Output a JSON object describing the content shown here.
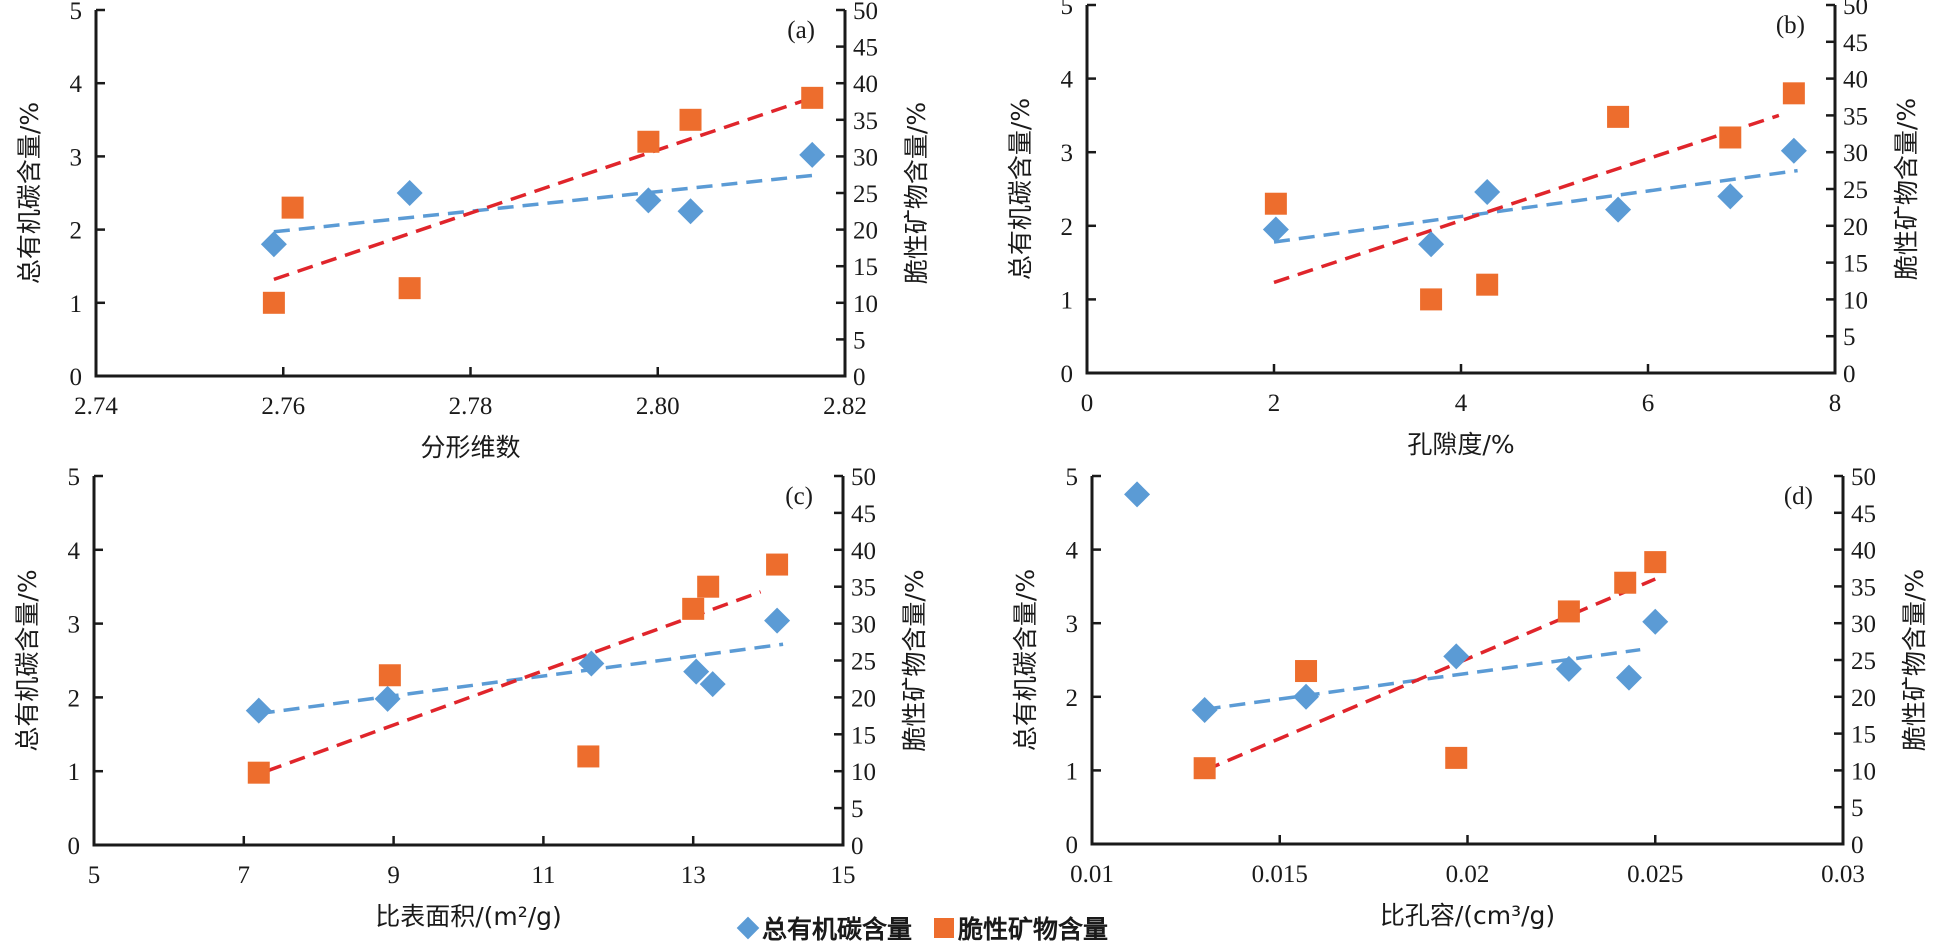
{
  "chart_data": [
    {
      "type": "scatter",
      "panel_label": "(a)",
      "xlabel": "分形维数",
      "ylabel_left": "总有机碳含量/%",
      "ylabel_right": "脆性矿物含量/%",
      "xlim": [
        2.74,
        2.82
      ],
      "x_ticks": [
        "2.74",
        "2.76",
        "2.78",
        "2.80",
        "2.82"
      ],
      "x_tick_values": [
        2.74,
        2.76,
        2.78,
        2.8,
        2.82
      ],
      "ylim_left": [
        0,
        5
      ],
      "ylim_right": [
        0,
        50
      ],
      "series": [
        {
          "name": "总有机碳含量",
          "axis": "left",
          "marker": "diamond",
          "x": [
            2.759,
            2.7735,
            2.799,
            2.8035,
            2.8165
          ],
          "y": [
            1.8,
            2.5,
            2.4,
            2.25,
            3.02
          ],
          "trend": {
            "x": [
              2.759,
              2.8165
            ],
            "y": [
              1.97,
              2.74
            ]
          }
        },
        {
          "name": "脆性矿物含量",
          "axis": "right",
          "marker": "square",
          "x": [
            2.759,
            2.761,
            2.7735,
            2.799,
            2.8035,
            2.8165
          ],
          "y": [
            10,
            23,
            12,
            32,
            35,
            38
          ],
          "trend": {
            "x": [
              2.759,
              2.8165
            ],
            "y": [
              13.2,
              38
            ]
          }
        }
      ]
    },
    {
      "type": "scatter",
      "panel_label": "(b)",
      "xlabel": "孔隙度/%",
      "ylabel_left": "总有机碳含量/%",
      "ylabel_right": "脆性矿物含量/%",
      "xlim": [
        0,
        8
      ],
      "x_ticks": [
        "0",
        "2",
        "4",
        "6",
        "8"
      ],
      "x_tick_values": [
        0,
        2,
        4,
        6,
        8
      ],
      "ylim_left": [
        0,
        5
      ],
      "ylim_right": [
        0,
        50
      ],
      "series": [
        {
          "name": "总有机碳含量",
          "axis": "left",
          "marker": "diamond",
          "x": [
            2.02,
            3.68,
            4.28,
            5.68,
            6.88,
            7.56
          ],
          "y": [
            1.95,
            1.75,
            2.46,
            2.22,
            2.4,
            3.02
          ],
          "trend": {
            "x": [
              2.0,
              7.6
            ],
            "y": [
              1.78,
              2.75
            ]
          }
        },
        {
          "name": "脆性矿物含量",
          "axis": "right",
          "marker": "square",
          "x": [
            2.02,
            3.68,
            4.28,
            5.68,
            6.88,
            7.56
          ],
          "y": [
            23,
            10,
            12,
            34.8,
            32,
            38
          ],
          "trend": {
            "x": [
              2.0,
              7.4
            ],
            "y": [
              12.3,
              35
            ]
          }
        }
      ]
    },
    {
      "type": "scatter",
      "panel_label": "(c)",
      "xlabel": "比表面积/(m²/g)",
      "ylabel_left": "总有机碳含量/%",
      "ylabel_right": "脆性矿物含量/%",
      "xlim": [
        5,
        15
      ],
      "x_ticks": [
        "5",
        "7",
        "9",
        "11",
        "13",
        "15"
      ],
      "x_tick_values": [
        5,
        7,
        9,
        11,
        13,
        15
      ],
      "ylim_left": [
        0,
        5
      ],
      "ylim_right": [
        0,
        50
      ],
      "series": [
        {
          "name": "总有机碳含量",
          "axis": "left",
          "marker": "diamond",
          "x": [
            7.2,
            8.92,
            11.64,
            13.04,
            13.26,
            14.12
          ],
          "y": [
            1.82,
            1.98,
            2.46,
            2.35,
            2.18,
            3.04
          ],
          "trend": {
            "x": [
              7.2,
              14.2
            ],
            "y": [
              1.78,
              2.72
            ]
          }
        },
        {
          "name": "脆性矿物含量",
          "axis": "right",
          "marker": "square",
          "x": [
            7.2,
            8.95,
            11.6,
            13.0,
            13.2,
            14.12
          ],
          "y": [
            9.8,
            23,
            12,
            32,
            35,
            38
          ],
          "trend": {
            "x": [
              7.3,
              13.9
            ],
            "y": [
              10,
              34.3
            ]
          }
        }
      ]
    },
    {
      "type": "scatter",
      "panel_label": "(d)",
      "xlabel": "比孔容/(cm³/g)",
      "ylabel_left": "总有机碳含量/%",
      "ylabel_right": "脆性矿物含量/%",
      "xlim": [
        0.01,
        0.03
      ],
      "x_ticks": [
        "0.01",
        "0.015",
        "0.02",
        "0.025",
        "0.03"
      ],
      "x_tick_values": [
        0.01,
        0.015,
        0.02,
        0.025,
        0.03
      ],
      "ylim_left": [
        0,
        5
      ],
      "ylim_right": [
        0,
        50
      ],
      "series": [
        {
          "name": "总有机碳含量",
          "axis": "left",
          "marker": "diamond",
          "x": [
            0.0112,
            0.013,
            0.0157,
            0.0197,
            0.0227,
            0.0243,
            0.025
          ],
          "y": [
            4.75,
            1.82,
            2.0,
            2.55,
            2.38,
            2.26,
            3.02
          ],
          "trend": {
            "x": [
              0.013,
              0.0246
            ],
            "y": [
              1.83,
              2.64
            ]
          }
        },
        {
          "name": "脆性矿物含量",
          "axis": "right",
          "marker": "square",
          "x": [
            0.013,
            0.0157,
            0.0197,
            0.0227,
            0.0242,
            0.025
          ],
          "y": [
            10.3,
            23.5,
            11.7,
            31.6,
            35.5,
            38.3
          ],
          "trend": {
            "x": [
              0.013,
              0.025
            ],
            "y": [
              10,
              36
            ]
          }
        }
      ]
    }
  ],
  "y_left_ticks": [
    "0",
    "1",
    "2",
    "3",
    "4",
    "5"
  ],
  "y_right_ticks": [
    "0",
    "5",
    "10",
    "15",
    "20",
    "25",
    "30",
    "35",
    "40",
    "45",
    "50"
  ],
  "legend": {
    "toc": "总有机碳含量",
    "brittle": "脆性矿物含量"
  },
  "colors": {
    "toc": "#5b9bd5",
    "brittle": "#ed6d2d",
    "toc_trend": "#5b9bd5",
    "brittle_trend": "#e0252b",
    "axis": "#1a1a1a"
  }
}
